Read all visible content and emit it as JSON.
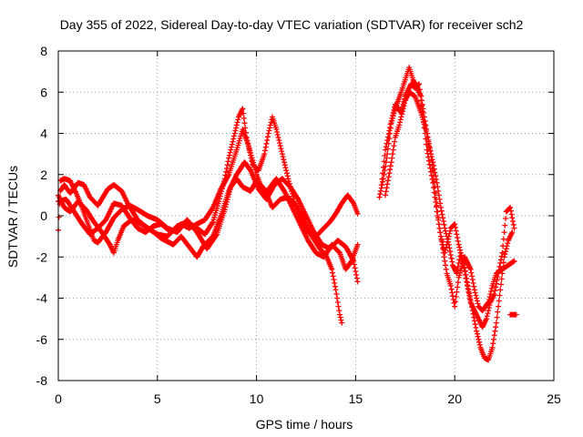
{
  "chart_data": {
    "type": "scatter",
    "title": "Day 355 of 2022, Sidereal Day-to-day VTEC variation (SDTVAR) for receiver sch2",
    "xlabel": "GPS time / hours",
    "ylabel": "SDTVAR / TECUs",
    "xlim": [
      0,
      25
    ],
    "ylim": [
      -8,
      8
    ],
    "xticks": [
      0,
      5,
      10,
      15,
      20,
      25
    ],
    "yticks": [
      -8,
      -6,
      -4,
      -2,
      0,
      2,
      4,
      6,
      8
    ],
    "grid": true,
    "marker": "+",
    "series": [
      {
        "name": "SDTVAR",
        "color": "#ff0000",
        "tracks": [
          [
            [
              0,
              -0.7
            ],
            [
              0.1,
              1.2
            ],
            [
              0.3,
              1.5
            ],
            [
              0.6,
              1.1
            ],
            [
              1.0,
              1.6
            ],
            [
              1.3,
              1.5
            ],
            [
              1.6,
              0.9
            ],
            [
              2.0,
              0.5
            ],
            [
              2.5,
              1.3
            ],
            [
              2.8,
              1.5
            ],
            [
              3.2,
              1.2
            ],
            [
              3.5,
              0.6
            ],
            [
              4.0,
              -0.2
            ],
            [
              4.5,
              -0.6
            ],
            [
              5.0,
              -0.9
            ],
            [
              5.5,
              -1.0
            ],
            [
              6.0,
              -0.5
            ],
            [
              6.5,
              -0.3
            ],
            [
              7.0,
              -0.6
            ],
            [
              7.4,
              -0.9
            ],
            [
              7.8,
              -0.3
            ],
            [
              8.1,
              0.7
            ],
            [
              8.4,
              1.8
            ],
            [
              8.6,
              2.8
            ],
            [
              8.9,
              4.0
            ],
            [
              9.1,
              4.8
            ],
            [
              9.3,
              5.2
            ],
            [
              9.5,
              3.8
            ],
            [
              9.8,
              2.5
            ],
            [
              10.1,
              2.2
            ],
            [
              10.4,
              3.0
            ],
            [
              10.6,
              4.0
            ],
            [
              10.8,
              4.8
            ],
            [
              11.0,
              4.2
            ],
            [
              11.3,
              3.0
            ],
            [
              11.6,
              1.8
            ],
            [
              11.9,
              0.7
            ],
            [
              12.2,
              -0.2
            ],
            [
              12.6,
              -0.8
            ],
            [
              13.0,
              -1.0
            ],
            [
              13.4,
              -0.6
            ],
            [
              13.7,
              -0.3
            ],
            [
              14.0,
              0.1
            ],
            [
              14.3,
              0.6
            ],
            [
              14.6,
              1.0
            ],
            [
              14.9,
              0.6
            ],
            [
              15.1,
              0.1
            ]
          ],
          [
            [
              0.1,
              1.7
            ],
            [
              0.3,
              1.8
            ],
            [
              0.6,
              1.7
            ],
            [
              0.9,
              1.1
            ],
            [
              1.2,
              0.4
            ],
            [
              1.5,
              -0.4
            ],
            [
              1.8,
              -1.2
            ],
            [
              2.0,
              -1.3
            ],
            [
              2.4,
              -0.8
            ],
            [
              2.8,
              -0.1
            ],
            [
              3.2,
              0.3
            ],
            [
              3.6,
              0.5
            ],
            [
              4.0,
              0.3
            ],
            [
              4.5,
              0.0
            ],
            [
              5.0,
              -0.2
            ],
            [
              5.5,
              -0.6
            ],
            [
              6.0,
              -0.8
            ],
            [
              6.5,
              -0.2
            ],
            [
              7.0,
              -0.8
            ],
            [
              7.5,
              -1.6
            ],
            [
              8.0,
              -0.9
            ],
            [
              8.4,
              0.3
            ],
            [
              8.7,
              1.4
            ],
            [
              9.0,
              1.8
            ],
            [
              9.3,
              1.4
            ],
            [
              9.7,
              1.2
            ],
            [
              10.0,
              1.7
            ],
            [
              10.4,
              1.3
            ],
            [
              10.8,
              0.4
            ],
            [
              11.2,
              0.8
            ],
            [
              11.6,
              0.9
            ],
            [
              12.0,
              0.5
            ],
            [
              12.4,
              -0.2
            ],
            [
              12.8,
              -1.0
            ],
            [
              13.2,
              -1.6
            ],
            [
              13.5,
              -1.9
            ],
            [
              13.8,
              -2.6
            ],
            [
              14.0,
              -3.6
            ],
            [
              14.2,
              -4.8
            ],
            [
              14.3,
              -5.2
            ]
          ],
          [
            [
              0.0,
              1.0
            ],
            [
              0.3,
              0.4
            ],
            [
              0.6,
              0.2
            ],
            [
              1.0,
              0.7
            ],
            [
              1.4,
              0.3
            ],
            [
              1.8,
              -0.3
            ],
            [
              2.2,
              -0.8
            ],
            [
              2.6,
              -1.4
            ],
            [
              2.8,
              -1.8
            ],
            [
              3.0,
              -1.2
            ],
            [
              3.3,
              -0.5
            ],
            [
              3.7,
              -0.2
            ],
            [
              4.2,
              -0.4
            ],
            [
              4.7,
              -0.7
            ],
            [
              5.2,
              -1.1
            ],
            [
              5.8,
              -1.4
            ],
            [
              6.2,
              -1.0
            ],
            [
              6.6,
              -1.5
            ],
            [
              7.0,
              -2.0
            ],
            [
              7.3,
              -1.5
            ],
            [
              7.8,
              -1.0
            ],
            [
              8.2,
              0.0
            ],
            [
              8.6,
              1.2
            ],
            [
              9.0,
              2.0
            ],
            [
              9.4,
              2.6
            ],
            [
              9.7,
              2.2
            ],
            [
              10.1,
              1.3
            ],
            [
              10.5,
              0.8
            ],
            [
              10.9,
              1.5
            ],
            [
              11.3,
              1.8
            ],
            [
              11.7,
              1.4
            ],
            [
              12.1,
              0.8
            ],
            [
              12.5,
              0.0
            ],
            [
              12.9,
              -0.8
            ],
            [
              13.3,
              -1.4
            ],
            [
              13.7,
              -1.6
            ],
            [
              14.1,
              -1.2
            ],
            [
              14.5,
              -1.5
            ],
            [
              14.9,
              -2.2
            ],
            [
              15.1,
              -3.2
            ]
          ],
          [
            [
              0.0,
              0.7
            ],
            [
              0.4,
              0.8
            ],
            [
              0.8,
              0.2
            ],
            [
              1.2,
              -0.4
            ],
            [
              1.6,
              -0.9
            ],
            [
              2.0,
              -0.6
            ],
            [
              2.4,
              -0.2
            ],
            [
              2.8,
              0.6
            ],
            [
              3.2,
              0.5
            ],
            [
              3.6,
              -0.1
            ],
            [
              4.0,
              -0.6
            ],
            [
              4.4,
              -0.8
            ],
            [
              4.8,
              -0.5
            ],
            [
              5.2,
              -0.4
            ],
            [
              5.7,
              -0.8
            ],
            [
              6.2,
              -0.4
            ],
            [
              6.6,
              -0.6
            ],
            [
              7.0,
              -0.4
            ],
            [
              7.4,
              -0.2
            ],
            [
              7.8,
              0.4
            ],
            [
              8.2,
              1.3
            ],
            [
              8.6,
              2.0
            ],
            [
              9.0,
              3.2
            ],
            [
              9.3,
              4.2
            ],
            [
              9.6,
              3.4
            ],
            [
              10.0,
              2.0
            ],
            [
              10.4,
              1.0
            ],
            [
              10.7,
              1.4
            ],
            [
              11.0,
              1.8
            ],
            [
              11.4,
              1.2
            ],
            [
              11.8,
              0.4
            ],
            [
              12.2,
              -0.4
            ],
            [
              12.6,
              -1.2
            ],
            [
              13.0,
              -1.8
            ],
            [
              13.4,
              -2.0
            ],
            [
              13.8,
              -1.4
            ],
            [
              14.2,
              -1.8
            ],
            [
              14.5,
              -2.6
            ],
            [
              14.8,
              -2.2
            ],
            [
              15.1,
              -1.4
            ]
          ],
          [
            [
              16.2,
              0.9
            ],
            [
              16.4,
              1.8
            ],
            [
              16.6,
              3.0
            ],
            [
              16.8,
              4.5
            ],
            [
              17.0,
              5.2
            ],
            [
              17.3,
              6.0
            ],
            [
              17.5,
              6.6
            ],
            [
              17.7,
              7.2
            ],
            [
              17.9,
              6.6
            ],
            [
              18.1,
              6.2
            ],
            [
              18.3,
              5.8
            ],
            [
              18.5,
              4.6
            ],
            [
              18.7,
              3.4
            ],
            [
              18.9,
              2.6
            ],
            [
              19.1,
              1.6
            ],
            [
              19.3,
              0.4
            ],
            [
              19.5,
              -0.6
            ],
            [
              19.7,
              -1.4
            ],
            [
              19.9,
              -2.4
            ],
            [
              20.1,
              -2.8
            ],
            [
              20.3,
              -1.8
            ],
            [
              20.5,
              -2.5
            ],
            [
              20.7,
              -3.6
            ],
            [
              20.9,
              -4.6
            ],
            [
              21.1,
              -5.6
            ],
            [
              21.3,
              -6.4
            ],
            [
              21.5,
              -6.9
            ],
            [
              21.7,
              -7.0
            ],
            [
              21.9,
              -6.4
            ],
            [
              22.1,
              -5.2
            ],
            [
              22.3,
              -3.6
            ],
            [
              22.5,
              -2.0
            ],
            [
              22.7,
              -1.2
            ],
            [
              22.9,
              -0.8
            ]
          ],
          [
            [
              16.3,
              1.5
            ],
            [
              16.5,
              3.2
            ],
            [
              16.8,
              4.6
            ],
            [
              17.0,
              5.4
            ],
            [
              17.3,
              5.0
            ],
            [
              17.5,
              5.8
            ],
            [
              17.8,
              6.4
            ],
            [
              18.0,
              6.2
            ],
            [
              18.2,
              6.4
            ],
            [
              18.4,
              4.8
            ],
            [
              18.6,
              3.2
            ],
            [
              18.9,
              1.6
            ],
            [
              19.1,
              0.2
            ],
            [
              19.3,
              -1.0
            ],
            [
              19.5,
              -1.8
            ],
            [
              19.8,
              -0.6
            ],
            [
              20.0,
              -0.4
            ],
            [
              20.2,
              -1.4
            ],
            [
              20.4,
              -2.2
            ],
            [
              20.6,
              -3.2
            ],
            [
              20.8,
              -4.2
            ],
            [
              21.0,
              -4.6
            ],
            [
              21.2,
              -5.0
            ],
            [
              21.4,
              -5.4
            ],
            [
              21.6,
              -5.0
            ],
            [
              21.8,
              -4.2
            ],
            [
              22.0,
              -3.8
            ],
            [
              22.2,
              -2.8
            ],
            [
              22.4,
              -1.8
            ],
            [
              22.6,
              0.2
            ],
            [
              22.8,
              0.4
            ],
            [
              23.0,
              -0.6
            ]
          ],
          [
            [
              16.5,
              1.0
            ],
            [
              16.8,
              2.6
            ],
            [
              17.0,
              3.8
            ],
            [
              17.2,
              4.4
            ],
            [
              17.5,
              5.6
            ],
            [
              17.7,
              6.0
            ],
            [
              18.0,
              5.8
            ],
            [
              18.3,
              5.0
            ],
            [
              18.6,
              4.0
            ],
            [
              18.8,
              3.0
            ],
            [
              19.0,
              1.4
            ],
            [
              19.2,
              -0.4
            ],
            [
              19.4,
              -1.6
            ],
            [
              19.6,
              -2.8
            ],
            [
              19.8,
              -3.4
            ],
            [
              20.0,
              -4.4
            ],
            [
              20.2,
              -3.0
            ],
            [
              20.5,
              -2.0
            ],
            [
              20.8,
              -2.6
            ],
            [
              21.0,
              -3.6
            ],
            [
              21.2,
              -4.4
            ],
            [
              21.4,
              -4.6
            ],
            [
              21.7,
              -4.2
            ],
            [
              21.9,
              -3.4
            ],
            [
              22.1,
              -2.8
            ],
            [
              22.4,
              -2.6
            ],
            [
              22.7,
              -2.4
            ],
            [
              23.0,
              -2.2
            ]
          ],
          [
            [
              22.8,
              -4.8
            ],
            [
              23.1,
              -4.8
            ]
          ]
        ]
      }
    ]
  }
}
